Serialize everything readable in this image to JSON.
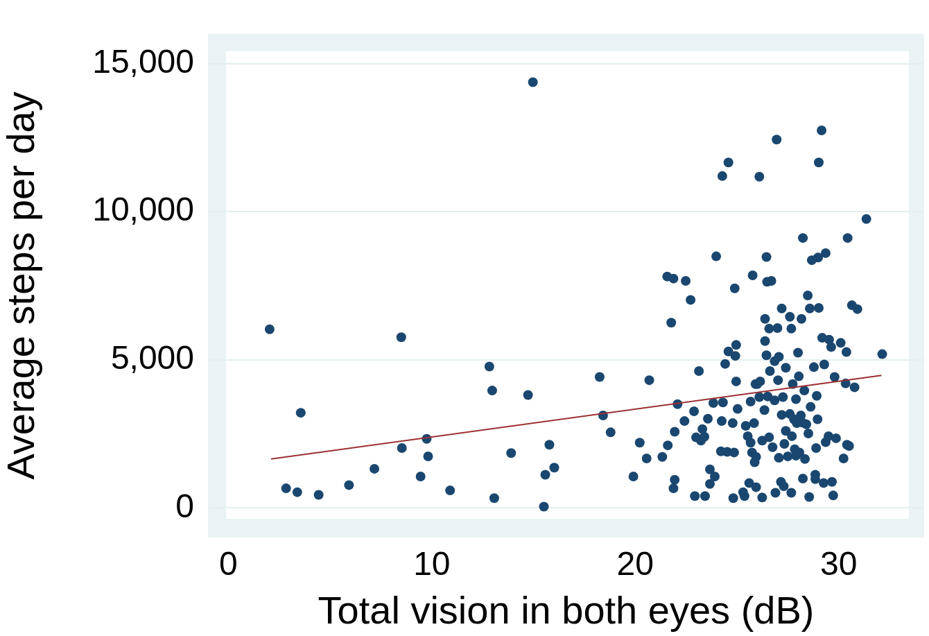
{
  "chart_data": {
    "type": "scatter",
    "xlabel": "Total vision in both eyes (dB)",
    "ylabel": "Average steps per day",
    "xlim": [
      -1,
      34.2
    ],
    "ylim": [
      -1000,
      16000
    ],
    "xticks": [
      0,
      10,
      20,
      30
    ],
    "yticks": [
      {
        "value": 0,
        "label": "0"
      },
      {
        "value": 5000,
        "label": "5,000"
      },
      {
        "value": 10000,
        "label": "10,000"
      },
      {
        "value": 15000,
        "label": "15,000"
      }
    ],
    "grid": "y",
    "legend": false,
    "marker": "circle",
    "series": [
      {
        "color": "#1a476f",
        "x": [
          2.03,
          8.5,
          3.56,
          2.84,
          3.39,
          4.44,
          5.93,
          7.18,
          8.53,
          9.75,
          9.82,
          9.45,
          10.9,
          12.83,
          12.97,
          13.07,
          13.9,
          14.73,
          14.97,
          15.78,
          15.58,
          16.02,
          15.51,
          18.25,
          18.42,
          18.79,
          20.22,
          19.91,
          20.56,
          20.69,
          21.33,
          21.57,
          21.88,
          21.77,
          21.6,
          21.94,
          21.94,
          21.88,
          22.08,
          22.48,
          22.72,
          22.42,
          22.89,
          22.93,
          22.99,
          23.23,
          23.13,
          23.3,
          23.43,
          23.4,
          23.57,
          23.67,
          23.67,
          23.84,
          23.98,
          23.91,
          24.28,
          24.31,
          24.21,
          24.25,
          24.42,
          24.52,
          24.58,
          24.58,
          24.79,
          24.86,
          24.89,
          24.92,
          24.96,
          24.82,
          24.96,
          25.03,
          25.3,
          25.37,
          25.43,
          25.53,
          25.6,
          25.67,
          25.67,
          25.74,
          25.77,
          25.84,
          25.87,
          25.91,
          25.94,
          25.94,
          26.0,
          26.1,
          26.1,
          26.14,
          26.24,
          26.24,
          26.35,
          26.38,
          26.38,
          26.45,
          26.48,
          26.58,
          26.45,
          26.51,
          26.58,
          26.62,
          26.69,
          26.75,
          26.85,
          26.85,
          26.89,
          26.95,
          26.99,
          27.02,
          27.06,
          27.06,
          27.16,
          27.2,
          27.2,
          27.26,
          27.3,
          27.33,
          27.4,
          27.4,
          27.5,
          27.6,
          27.6,
          27.67,
          27.67,
          27.7,
          27.74,
          27.8,
          27.84,
          27.9,
          27.9,
          27.94,
          28.0,
          28.04,
          28.07,
          28.14,
          28.17,
          28.21,
          28.24,
          28.31,
          28.24,
          28.34,
          28.41,
          28.48,
          28.51,
          28.55,
          28.58,
          28.62,
          28.68,
          28.78,
          28.85,
          28.85,
          28.89,
          28.92,
          28.96,
          28.99,
          29.02,
          29.02,
          29.16,
          29.19,
          29.29,
          29.26,
          29.36,
          29.36,
          29.5,
          29.53,
          29.67,
          29.63,
          29.73,
          29.8,
          29.87,
          30.1,
          30.24,
          30.34,
          30.41,
          30.44,
          30.38,
          30.51,
          30.65,
          30.78,
          30.92,
          31.36,
          32.14
        ],
        "values": [
          6030,
          5760,
          3210,
          660,
          530,
          440,
          770,
          1320,
          2020,
          2330,
          1740,
          1060,
          590,
          4770,
          3960,
          330,
          1850,
          3810,
          14370,
          2130,
          1120,
          1360,
          40,
          4420,
          3120,
          2550,
          2200,
          1060,
          1670,
          4310,
          1720,
          7810,
          7740,
          6250,
          2110,
          2570,
          950,
          660,
          3500,
          7660,
          7020,
          2930,
          3260,
          400,
          2380,
          2270,
          4620,
          2660,
          400,
          2400,
          3010,
          810,
          1300,
          3540,
          8490,
          1060,
          11200,
          3560,
          1910,
          2930,
          4860,
          1890,
          11660,
          5280,
          2860,
          1870,
          7410,
          5130,
          5500,
          330,
          4270,
          3340,
          530,
          400,
          2770,
          2420,
          840,
          3590,
          2200,
          1870,
          7850,
          2860,
          1540,
          4180,
          700,
          1720,
          4180,
          11180,
          3740,
          4270,
          2270,
          350,
          3300,
          6380,
          5630,
          8470,
          7630,
          2380,
          5150,
          3760,
          6050,
          4620,
          7660,
          2050,
          4950,
          3630,
          510,
          12430,
          6070,
          4310,
          5100,
          1690,
          880,
          6730,
          3140,
          3740,
          730,
          2160,
          4730,
          2600,
          1740,
          3170,
          6450,
          6050,
          510,
          2420,
          4180,
          2990,
          1980,
          3670,
          1760,
          2860,
          5240,
          4440,
          1870,
          3120,
          6380,
          2880,
          9110,
          3960,
          990,
          1650,
          2820,
          7170,
          2510,
          370,
          6730,
          3410,
          8360,
          4750,
          1120,
          970,
          2020,
          3780,
          2990,
          8450,
          6750,
          11660,
          12740,
          5740,
          4840,
          840,
          8600,
          2220,
          2420,
          5680,
          880,
          5430,
          420,
          4420,
          2350,
          5570,
          1670,
          4200,
          2130,
          9110,
          5260,
          2090,
          6840,
          4070,
          6710,
          9750,
          5190
        ]
      },
      {
        "type": "line",
        "color": "#9b2f33",
        "x": [
          2.1,
          32.1
        ],
        "values": [
          1650,
          4470
        ],
        "marker": "none"
      }
    ]
  }
}
